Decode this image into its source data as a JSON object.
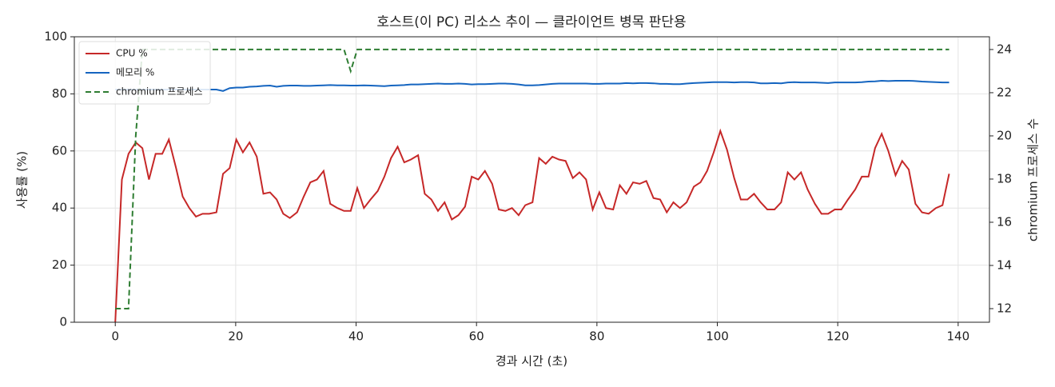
{
  "chart_data": {
    "type": "line",
    "title": "호스트(이 PC) 리소스 추이 — 클라이언트 병목 판단용",
    "xlabel": "경과 시간 (초)",
    "ylabel": "사용률 (%)",
    "y2label": "chromium 프로세스 수",
    "x": [
      0,
      1.1,
      2.2,
      3.4,
      4.5,
      5.6,
      6.7,
      7.8,
      8.9,
      10.1,
      11.2,
      12.3,
      13.4,
      14.5,
      15.6,
      16.8,
      17.9,
      19.0,
      20.1,
      21.2,
      22.3,
      23.5,
      24.6,
      25.7,
      26.8,
      27.9,
      29.0,
      30.2,
      31.3,
      32.4,
      33.5,
      34.6,
      35.7,
      36.9,
      38.0,
      39.1,
      40.2,
      41.3,
      42.4,
      43.6,
      44.7,
      45.8,
      46.9,
      48.0,
      49.1,
      50.3,
      51.4,
      52.5,
      53.6,
      54.7,
      55.9,
      57.0,
      58.1,
      59.2,
      60.3,
      61.4,
      62.6,
      63.7,
      64.8,
      65.9,
      67.0,
      68.1,
      69.3,
      70.4,
      71.5,
      72.6,
      73.7,
      74.8,
      76.0,
      77.1,
      78.2,
      79.3,
      80.4,
      81.5,
      82.7,
      83.8,
      84.9,
      86.0,
      87.1,
      88.2,
      89.4,
      90.5,
      91.6,
      92.7,
      93.8,
      94.9,
      96.1,
      97.2,
      98.3,
      99.4,
      100.5,
      101.6,
      102.8,
      103.9,
      105.0,
      106.1,
      107.2,
      108.3,
      109.5,
      110.6,
      111.7,
      112.8,
      113.9,
      115.0,
      116.2,
      117.3,
      118.4,
      119.5,
      120.6,
      121.7,
      122.9,
      124.0,
      125.1,
      126.2,
      127.3,
      128.4,
      129.6,
      130.7,
      131.8,
      132.9,
      134.0,
      135.1,
      136.3,
      137.4,
      138.5
    ],
    "series": [
      {
        "name": "CPU %",
        "color": "#c62828",
        "linestyle": "solid",
        "values": [
          0,
          50,
          59,
          63,
          61,
          50,
          59,
          59,
          64,
          54,
          44,
          40,
          37,
          38,
          38,
          38.5,
          52,
          54,
          64,
          59.5,
          63,
          58,
          45,
          45.5,
          43,
          38,
          36.5,
          38.5,
          44,
          49,
          50,
          53,
          41.5,
          40,
          39,
          39,
          47,
          40,
          43,
          46,
          51,
          57.5,
          61.5,
          56,
          57,
          58.5,
          45,
          43,
          39,
          42,
          36,
          37.5,
          40.5,
          51,
          50,
          53,
          48.5,
          39.5,
          39,
          40,
          37.5,
          41,
          42,
          57.5,
          55.5,
          58,
          57,
          56.5,
          50.5,
          52.5,
          50,
          39.5,
          45.5,
          40,
          39.5,
          48,
          45,
          49,
          48.5,
          49.5,
          43.5,
          43,
          38.5,
          42,
          40,
          42,
          47.5,
          49,
          53,
          59.5,
          67,
          60.5,
          50.5,
          43,
          43,
          45,
          42,
          39.5,
          39.5,
          42,
          52.5,
          50,
          52.5,
          46.5,
          41.5,
          38,
          38,
          39.5,
          39.5,
          43,
          46.5,
          51,
          51,
          61,
          66,
          60,
          51.5,
          56.5,
          53.5,
          41.5,
          38.5,
          38,
          40,
          41,
          52
        ]
      },
      {
        "name": "메모리 %",
        "color": "#1565c0",
        "linestyle": "solid",
        "values": [
          81.5,
          81.5,
          81.5,
          81.5,
          81.5,
          81.5,
          81.5,
          81.5,
          81.5,
          81.5,
          81.5,
          81.5,
          81.5,
          81.5,
          81.5,
          81.5,
          81.0,
          82.0,
          82.2,
          82.2,
          82.5,
          82.6,
          82.8,
          82.9,
          82.5,
          82.8,
          82.9,
          82.9,
          82.8,
          82.8,
          82.9,
          83.0,
          83.1,
          83.0,
          83.0,
          82.9,
          82.9,
          83.0,
          82.9,
          82.8,
          82.7,
          82.9,
          83.0,
          83.1,
          83.3,
          83.3,
          83.4,
          83.5,
          83.6,
          83.5,
          83.5,
          83.6,
          83.5,
          83.3,
          83.4,
          83.4,
          83.5,
          83.6,
          83.6,
          83.5,
          83.3,
          83.0,
          83.0,
          83.1,
          83.3,
          83.5,
          83.6,
          83.6,
          83.6,
          83.6,
          83.6,
          83.5,
          83.5,
          83.6,
          83.6,
          83.6,
          83.8,
          83.7,
          83.8,
          83.8,
          83.7,
          83.5,
          83.5,
          83.4,
          83.4,
          83.6,
          83.8,
          83.9,
          84.0,
          84.1,
          84.1,
          84.1,
          84.0,
          84.1,
          84.1,
          84.0,
          83.7,
          83.7,
          83.8,
          83.7,
          84.0,
          84.1,
          84.0,
          84.0,
          84.0,
          83.9,
          83.8,
          84.0,
          84.0,
          84.0,
          84.0,
          84.1,
          84.3,
          84.4,
          84.6,
          84.5,
          84.6,
          84.6,
          84.6,
          84.5,
          84.3,
          84.2,
          84.1,
          84.0,
          84.0
        ]
      },
      {
        "name": "chromium 프로세스",
        "color": "#2e7d32",
        "linestyle": "dashed",
        "axis": "y2",
        "values": [
          12,
          12,
          12,
          20,
          24,
          24,
          24,
          24,
          24,
          24,
          24,
          24,
          24,
          24,
          24,
          24,
          24,
          24,
          24,
          24,
          24,
          24,
          24,
          24,
          24,
          24,
          24,
          24,
          24,
          24,
          24,
          24,
          24,
          24,
          24,
          23,
          24,
          24,
          24,
          24,
          24,
          24,
          24,
          24,
          24,
          24,
          24,
          24,
          24,
          24,
          24,
          24,
          24,
          24,
          24,
          24,
          24,
          24,
          24,
          24,
          24,
          24,
          24,
          24,
          24,
          24,
          24,
          24,
          24,
          24,
          24,
          24,
          24,
          24,
          24,
          24,
          24,
          24,
          24,
          24,
          24,
          24,
          24,
          24,
          24,
          24,
          24,
          24,
          24,
          24,
          24,
          24,
          24,
          24,
          24,
          24,
          24,
          24,
          24,
          24,
          24,
          24,
          24,
          24,
          24,
          24,
          24,
          24,
          24,
          24,
          24,
          24,
          24,
          24,
          24,
          24,
          24,
          24,
          24,
          24,
          24,
          24,
          24,
          24,
          24
        ]
      }
    ],
    "xlim": [
      -6.8,
      145.2
    ],
    "xticks": [
      0,
      20,
      40,
      60,
      80,
      100,
      120,
      140
    ],
    "ylim": [
      0,
      100
    ],
    "yticks": [
      0,
      20,
      40,
      60,
      80,
      100
    ],
    "y2lim": [
      11.37,
      24.59
    ],
    "y2ticks": [
      12,
      14,
      16,
      18,
      20,
      22,
      24
    ],
    "grid": true,
    "legend": "upper left"
  }
}
